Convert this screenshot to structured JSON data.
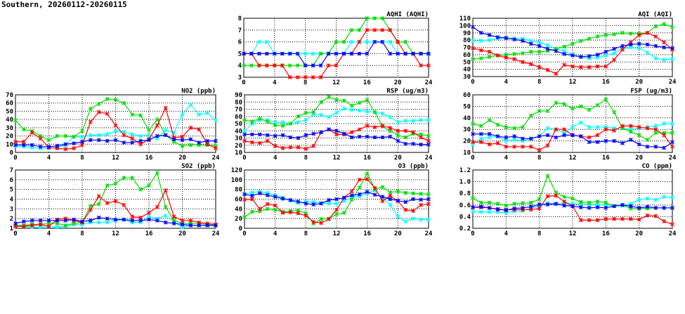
{
  "page_title": "Southern, 20260112-20260115",
  "chart_data": [
    {
      "type": "line",
      "title": "AQHI (AQHI)",
      "xlim": [
        0,
        24
      ],
      "xticks": [
        "0",
        "4",
        "8",
        "12",
        "16",
        "20",
        "24"
      ],
      "ylim": [
        3,
        8
      ],
      "yticks": [
        "3",
        "4",
        "5",
        "6",
        "7",
        "8"
      ],
      "grid": true,
      "series": [
        {
          "color": "#00ffff",
          "values": [
            5,
            5,
            6,
            6,
            5,
            5,
            5,
            5,
            5,
            5,
            5,
            5,
            5,
            5,
            6,
            6,
            6,
            6,
            6,
            6,
            5,
            5,
            5,
            5,
            5
          ]
        },
        {
          "color": "#00dd00",
          "values": [
            4,
            4,
            4,
            4,
            4,
            4,
            4,
            4,
            4,
            4,
            5,
            5,
            6,
            6,
            7,
            7,
            8,
            8,
            8,
            7,
            6,
            6,
            5,
            5,
            5
          ]
        },
        {
          "color": "#ff0000",
          "values": [
            5,
            5,
            4,
            4,
            4,
            4,
            3,
            3,
            3,
            3,
            3,
            4,
            4,
            5,
            5,
            6,
            7,
            7,
            7,
            7,
            6,
            5,
            5,
            4,
            4
          ]
        },
        {
          "color": "#0000ff",
          "values": [
            5,
            5,
            5,
            5,
            5,
            5,
            5,
            5,
            4,
            4,
            4,
            5,
            5,
            5,
            5,
            5,
            5,
            6,
            6,
            5,
            5,
            5,
            5,
            5,
            5
          ]
        }
      ]
    },
    {
      "type": "line",
      "title": "AQI (AQI)",
      "xlim": [
        0,
        24
      ],
      "xticks": [
        "0",
        "4",
        "8",
        "12",
        "16",
        "20",
        "24"
      ],
      "ylim": [
        30,
        110
      ],
      "yticks": [
        "30",
        "40",
        "50",
        "60",
        "70",
        "80",
        "90",
        "100",
        "110"
      ],
      "grid": true,
      "series": [
        {
          "color": "#00ffff",
          "values": [
            79,
            79,
            80,
            82,
            83,
            82,
            82,
            79,
            77,
            73,
            68,
            65,
            60,
            57,
            55,
            56,
            59,
            62,
            68,
            70,
            69,
            63,
            55,
            53,
            54
          ]
        },
        {
          "color": "#00dd00",
          "values": [
            54,
            55,
            57,
            59,
            60,
            61,
            62,
            64,
            64,
            65,
            68,
            71,
            75,
            79,
            82,
            85,
            87,
            88,
            90,
            89,
            89,
            90,
            99,
            102,
            98
          ]
        },
        {
          "color": "#ff0000",
          "values": [
            69,
            66,
            64,
            59,
            56,
            54,
            50,
            47,
            43,
            39,
            34,
            46,
            44,
            43,
            43,
            44,
            44,
            53,
            67,
            77,
            87,
            90,
            85,
            77,
            67
          ]
        },
        {
          "color": "#0000ff",
          "values": [
            98,
            90,
            87,
            84,
            83,
            81,
            79,
            75,
            72,
            68,
            65,
            61,
            59,
            57,
            58,
            60,
            64,
            68,
            72,
            74,
            75,
            74,
            72,
            70,
            69
          ]
        }
      ]
    },
    {
      "type": "line",
      "title": "NO2 (ppb)",
      "xlim": [
        0,
        24
      ],
      "xticks": [
        "0",
        "4",
        "8",
        "12",
        "16",
        "20",
        "24"
      ],
      "ylim": [
        0,
        70
      ],
      "yticks": [
        "0",
        "10",
        "20",
        "30",
        "40",
        "50",
        "60",
        "70"
      ],
      "grid": true,
      "series": [
        {
          "color": "#00ffff",
          "values": [
            8,
            7,
            6,
            5,
            5,
            6,
            9,
            19,
            19,
            21,
            21,
            22,
            26,
            25,
            22,
            20,
            21,
            17,
            27,
            24,
            46,
            58,
            46,
            48,
            39
          ]
        },
        {
          "color": "#00dd00",
          "values": [
            39,
            28,
            26,
            20,
            15,
            20,
            20,
            19,
            26,
            53,
            59,
            65,
            64,
            60,
            46,
            45,
            27,
            40,
            21,
            13,
            8,
            9,
            9,
            9,
            8
          ]
        },
        {
          "color": "#ff0000",
          "values": [
            13,
            13,
            24,
            17,
            6,
            5,
            4,
            5,
            9,
            37,
            49,
            47,
            33,
            21,
            17,
            10,
            16,
            33,
            54,
            18,
            19,
            30,
            28,
            10,
            5
          ]
        },
        {
          "color": "#0000ff",
          "values": [
            9,
            9,
            9,
            7,
            7,
            8,
            10,
            11,
            13,
            15,
            15,
            14,
            15,
            12,
            12,
            14,
            15,
            20,
            21,
            16,
            15,
            16,
            12,
            14,
            14
          ]
        }
      ]
    },
    {
      "type": "line",
      "title": "RSP (ug/m3)",
      "xlim": [
        0,
        24
      ],
      "xticks": [
        "0",
        "4",
        "8",
        "12",
        "16",
        "20",
        "24"
      ],
      "ylim": [
        10,
        90
      ],
      "yticks": [
        "10",
        "20",
        "30",
        "40",
        "50",
        "60",
        "70",
        "80",
        "90"
      ],
      "grid": true,
      "series": [
        {
          "color": "#00ffff",
          "values": [
            40,
            50,
            55,
            55,
            52,
            52,
            50,
            52,
            55,
            63,
            62,
            59,
            65,
            71,
            69,
            68,
            67,
            66,
            64,
            59,
            52,
            54,
            54,
            55,
            55
          ]
        },
        {
          "color": "#00dd00",
          "values": [
            55,
            53,
            57,
            53,
            48,
            47,
            50,
            60,
            65,
            66,
            80,
            87,
            83,
            82,
            75,
            79,
            83,
            66,
            46,
            40,
            34,
            31,
            36,
            35,
            33
          ]
        },
        {
          "color": "#ff0000",
          "values": [
            26,
            24,
            23,
            26,
            19,
            16,
            17,
            17,
            15,
            19,
            38,
            42,
            35,
            35,
            38,
            42,
            47,
            45,
            47,
            44,
            40,
            40,
            38,
            31,
            26
          ]
        },
        {
          "color": "#0000ff",
          "values": [
            35,
            35,
            35,
            34,
            33,
            34,
            31,
            30,
            34,
            36,
            38,
            42,
            40,
            36,
            31,
            32,
            32,
            31,
            31,
            32,
            26,
            22,
            22,
            21,
            21
          ]
        }
      ]
    },
    {
      "type": "line",
      "title": "FSP (ug/m3)",
      "xlim": [
        0,
        24
      ],
      "xticks": [
        "0",
        "4",
        "8",
        "12",
        "16",
        "20",
        "24"
      ],
      "ylim": [
        10,
        60
      ],
      "yticks": [
        "10",
        "20",
        "30",
        "40",
        "50",
        "60"
      ],
      "grid": true,
      "series": [
        {
          "color": "#00ffff",
          "values": [
            17,
            22,
            23,
            24,
            20,
            21,
            20,
            22,
            24,
            31,
            30,
            27,
            32,
            36,
            32,
            32,
            32,
            31,
            31,
            30,
            31,
            32,
            33,
            35,
            35
          ]
        },
        {
          "color": "#00dd00",
          "values": [
            35,
            33,
            38,
            34,
            32,
            31,
            32,
            42,
            46,
            46,
            53,
            52,
            48,
            50,
            47,
            51,
            56,
            45,
            31,
            28,
            25,
            21,
            27,
            27,
            27
          ]
        },
        {
          "color": "#ff0000",
          "values": [
            19,
            19,
            17,
            18,
            15,
            15,
            15,
            15,
            12,
            16,
            30,
            30,
            25,
            24,
            23,
            25,
            30,
            29,
            33,
            33,
            32,
            31,
            30,
            25,
            15
          ]
        },
        {
          "color": "#0000ff",
          "values": [
            26,
            26,
            26,
            24,
            23,
            24,
            22,
            22,
            24,
            25,
            23,
            25,
            25,
            24,
            19,
            19,
            20,
            20,
            18,
            21,
            17,
            15,
            15,
            14,
            19
          ]
        }
      ]
    },
    {
      "type": "line",
      "title": "SO2 (ppb)",
      "xlim": [
        0,
        24
      ],
      "xticks": [
        "0",
        "4",
        "8",
        "12",
        "16",
        "20",
        "24"
      ],
      "ylim": [
        1,
        7
      ],
      "yticks": [
        "1",
        "2",
        "3",
        "4",
        "5",
        "6",
        "7"
      ],
      "grid": true,
      "series": [
        {
          "color": "#00ffff",
          "values": [
            1.2,
            1.2,
            1.1,
            1.1,
            1.2,
            1.1,
            1.2,
            1.4,
            1.4,
            1.6,
            1.6,
            1.6,
            1.8,
            1.9,
            1.6,
            1.6,
            2.2,
            2.0,
            2.3,
            1.7,
            1.1,
            1.3,
            1.3,
            1.3,
            1.3
          ]
        },
        {
          "color": "#00dd00",
          "values": [
            1.3,
            1.3,
            1.4,
            1.4,
            1.5,
            1.5,
            1.3,
            1.5,
            1.6,
            3.3,
            3.5,
            5.4,
            5.6,
            6.2,
            6.2,
            5.0,
            5.4,
            6.7,
            3.2,
            1.8,
            1.5,
            1.5,
            1.5,
            1.4,
            1.3
          ]
        },
        {
          "color": "#ff0000",
          "values": [
            1.2,
            1.2,
            1.3,
            1.4,
            1.2,
            1.9,
            2.0,
            1.8,
            1.6,
            2.9,
            4.3,
            3.6,
            3.8,
            3.4,
            2.2,
            2.1,
            2.6,
            3.2,
            4.9,
            2.2,
            1.8,
            1.8,
            1.6,
            1.5,
            1.4
          ]
        },
        {
          "color": "#0000ff",
          "values": [
            1.5,
            1.7,
            1.8,
            1.8,
            1.8,
            1.8,
            1.8,
            1.9,
            1.7,
            1.8,
            2.1,
            2.0,
            1.9,
            1.9,
            1.8,
            1.8,
            1.9,
            1.8,
            1.6,
            1.5,
            1.4,
            1.3,
            1.3,
            1.3,
            1.3
          ]
        }
      ]
    },
    {
      "type": "line",
      "title": "O3 (ppb)",
      "xlim": [
        0,
        24
      ],
      "xticks": [
        "0",
        "4",
        "8",
        "12",
        "16",
        "20",
        "24"
      ],
      "ylim": [
        0,
        120
      ],
      "yticks": [
        "0",
        "20",
        "40",
        "60",
        "80",
        "100",
        "120"
      ],
      "grid": true,
      "series": [
        {
          "color": "#00ffff",
          "values": [
            70,
            74,
            75,
            73,
            68,
            63,
            57,
            52,
            55,
            54,
            52,
            51,
            51,
            56,
            64,
            66,
            72,
            78,
            63,
            48,
            24,
            14,
            20,
            18,
            18
          ]
        },
        {
          "color": "#00dd00",
          "values": [
            23,
            34,
            35,
            40,
            38,
            34,
            35,
            37,
            31,
            10,
            19,
            20,
            29,
            32,
            59,
            84,
            113,
            81,
            85,
            74,
            76,
            73,
            72,
            71,
            70
          ]
        },
        {
          "color": "#ff0000",
          "values": [
            59,
            60,
            40,
            50,
            47,
            32,
            33,
            31,
            26,
            13,
            11,
            19,
            38,
            63,
            76,
            100,
            101,
            83,
            56,
            67,
            56,
            38,
            36,
            48,
            50
          ]
        },
        {
          "color": "#0000ff",
          "values": [
            70,
            67,
            72,
            68,
            65,
            61,
            58,
            55,
            51,
            49,
            51,
            58,
            60,
            63,
            68,
            70,
            75,
            69,
            65,
            60,
            57,
            54,
            60,
            59,
            60
          ]
        }
      ]
    },
    {
      "type": "line",
      "title": "CO (ppm)",
      "xlim": [
        0,
        24
      ],
      "xticks": [
        "0",
        "4",
        "8",
        "12",
        "16",
        "20",
        "24"
      ],
      "ylim": [
        0.2,
        1.2
      ],
      "yticks": [
        "0.2",
        "0.4",
        "0.6",
        "0.8",
        "1.0",
        "1.2"
      ],
      "grid": true,
      "series": [
        {
          "color": "#00ffff",
          "values": [
            0.49,
            0.48,
            0.48,
            0.48,
            0.47,
            0.49,
            0.5,
            0.55,
            0.58,
            0.63,
            0.62,
            0.63,
            0.62,
            0.61,
            0.61,
            0.61,
            0.6,
            0.58,
            0.59,
            0.62,
            0.69,
            0.71,
            0.69,
            0.74,
            0.73
          ]
        },
        {
          "color": "#00dd00",
          "values": [
            0.72,
            0.64,
            0.64,
            0.62,
            0.59,
            0.62,
            0.63,
            0.64,
            0.7,
            1.1,
            0.81,
            0.74,
            0.71,
            0.65,
            0.64,
            0.66,
            0.64,
            0.58,
            0.6,
            0.54,
            0.54,
            0.54,
            0.55,
            0.55,
            0.55
          ]
        },
        {
          "color": "#ff0000",
          "values": [
            0.56,
            0.56,
            0.55,
            0.52,
            0.52,
            0.52,
            0.52,
            0.52,
            0.54,
            0.75,
            0.76,
            0.66,
            0.58,
            0.34,
            0.34,
            0.34,
            0.36,
            0.36,
            0.36,
            0.36,
            0.35,
            0.42,
            0.41,
            0.32,
            0.27
          ]
        },
        {
          "color": "#0000ff",
          "values": [
            0.56,
            0.57,
            0.55,
            0.53,
            0.51,
            0.54,
            0.55,
            0.57,
            0.61,
            0.61,
            0.62,
            0.59,
            0.58,
            0.56,
            0.55,
            0.56,
            0.55,
            0.58,
            0.6,
            0.58,
            0.55,
            0.57,
            0.55,
            0.55,
            0.55
          ]
        }
      ]
    }
  ]
}
